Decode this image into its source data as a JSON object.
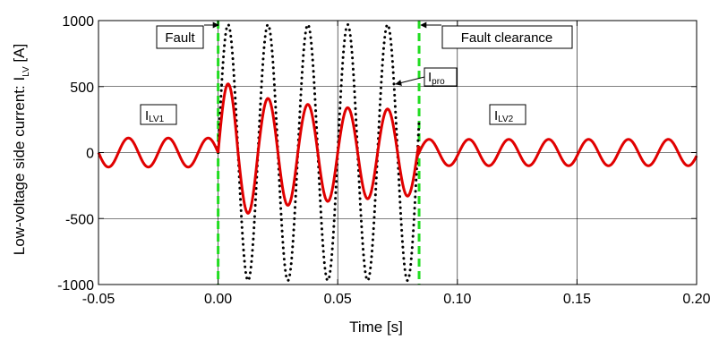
{
  "chart_data": {
    "type": "line",
    "xlabel": "Time [s]",
    "ylabel": {
      "main": "Low-voltage side current: I",
      "sub": "LV",
      "unit": " [A]"
    },
    "xlim": [
      -0.05,
      0.2
    ],
    "ylim": [
      -1000,
      1000
    ],
    "x_ticks": [
      -0.05,
      0.0,
      0.05,
      0.1,
      0.15,
      0.2
    ],
    "x_tick_labels": [
      "-0.05",
      "0.00",
      "0.05",
      "0.10",
      "0.15",
      "0.20"
    ],
    "y_ticks": [
      -1000,
      -500,
      0,
      500,
      1000
    ],
    "y_tick_labels": [
      "-1000",
      "-500",
      "0",
      "500",
      "1000"
    ],
    "grid": true,
    "fault_time": 0.0,
    "clearance_time": 0.084,
    "series": [
      {
        "name": "I_LV",
        "style": "solid",
        "color": "#e00000",
        "frequency_hz": 60,
        "pre_fault_amplitude": 110,
        "fault_peaks": [
          520,
          -460,
          410,
          -400,
          365,
          -370,
          340,
          -350,
          330,
          -330
        ],
        "post_fault_amplitude": 100
      },
      {
        "name": "I_pro",
        "style": "dotted",
        "color": "#000000",
        "frequency_hz": 60,
        "amplitude": 970
      }
    ],
    "vertical_markers": [
      {
        "x": 0.0,
        "color": "#22dd22",
        "style": "dashed"
      },
      {
        "x": 0.084,
        "color": "#22dd22",
        "style": "dashed"
      }
    ],
    "annotations": {
      "fault": "Fault",
      "fault_clearance": "Fault clearance",
      "ipro": {
        "main": "I",
        "sub": "pro"
      },
      "ilv1": {
        "main": "I",
        "sub": "LV1"
      },
      "ilv2": {
        "main": "I",
        "sub": "LV2"
      }
    }
  }
}
